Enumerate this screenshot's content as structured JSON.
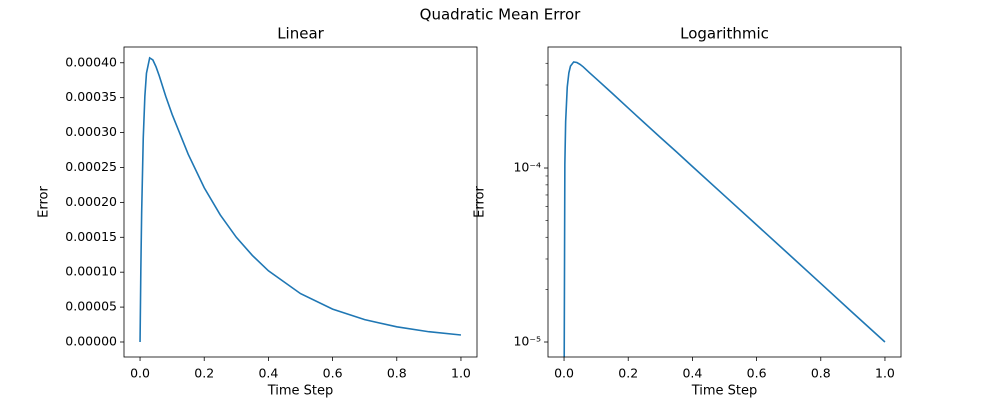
{
  "title": "Quadratic Mean Error",
  "chart_data": [
    {
      "type": "line",
      "title": "Linear",
      "x_label": "Time Step",
      "y_label": "Error",
      "color": "#1f77b4",
      "yscale": "linear",
      "x": [
        0,
        0.0025,
        0.005,
        0.01,
        0.015,
        0.02,
        0.03,
        0.04,
        0.05,
        0.06,
        0.08,
        0.1,
        0.15,
        0.2,
        0.25,
        0.3,
        0.35,
        0.4,
        0.5,
        0.6,
        0.7,
        0.8,
        0.9,
        1.0
      ],
      "values": [
        0,
        0.000105,
        0.000185,
        0.000292,
        0.000352,
        0.000385,
        0.000407,
        0.000404,
        0.000394,
        0.000381,
        0.000352,
        0.000326,
        0.000269,
        0.000221,
        0.000182,
        0.00015,
        0.000124,
        0.000102,
        6.93e-05,
        4.71e-05,
        3.2e-05,
        2.17e-05,
        1.47e-05,
        1e-05
      ],
      "xlim": [
        -0.05,
        1.05
      ],
      "xticks": [
        {
          "value": 0,
          "label": "0.0"
        },
        {
          "value": 0.2,
          "label": "0.2"
        },
        {
          "value": 0.4,
          "label": "0.4"
        },
        {
          "value": 0.6,
          "label": "0.6"
        },
        {
          "value": 0.8,
          "label": "0.8"
        },
        {
          "value": 1,
          "label": "1.0"
        }
      ],
      "ylim": [
        -2.15e-05,
        0.0004226
      ],
      "yticks": [
        {
          "value": 0,
          "label": "0.00000"
        },
        {
          "value": 5e-05,
          "label": "0.00005"
        },
        {
          "value": 0.0001,
          "label": "0.00010"
        },
        {
          "value": 0.00015,
          "label": "0.00015"
        },
        {
          "value": 0.0002,
          "label": "0.00020"
        },
        {
          "value": 0.00025,
          "label": "0.00025"
        },
        {
          "value": 0.0003,
          "label": "0.00030"
        },
        {
          "value": 0.00035,
          "label": "0.00035"
        },
        {
          "value": 0.0004,
          "label": "0.00040"
        }
      ]
    },
    {
      "type": "line",
      "title": "Logarithmic",
      "x_label": "Time Step",
      "y_label": "Error",
      "color": "#1f77b4",
      "yscale": "log",
      "x": [
        0.0001,
        0.0025,
        0.005,
        0.01,
        0.015,
        0.02,
        0.03,
        0.04,
        0.05,
        0.06,
        0.08,
        0.1,
        0.15,
        0.2,
        0.25,
        0.3,
        0.35,
        0.4,
        0.5,
        0.6,
        0.7,
        0.8,
        0.9,
        1.0
      ],
      "values": [
        4.8e-06,
        0.000105,
        0.000185,
        0.000292,
        0.000352,
        0.000385,
        0.000407,
        0.000404,
        0.000394,
        0.000381,
        0.000352,
        0.000326,
        0.000269,
        0.000221,
        0.000182,
        0.00015,
        0.000124,
        0.000102,
        6.93e-05,
        4.71e-05,
        3.2e-05,
        2.17e-05,
        1.47e-05,
        1e-05
      ],
      "xlim": [
        -0.05,
        1.05
      ],
      "xticks": [
        {
          "value": 0,
          "label": "0.0"
        },
        {
          "value": 0.2,
          "label": "0.2"
        },
        {
          "value": 0.4,
          "label": "0.4"
        },
        {
          "value": 0.6,
          "label": "0.6"
        },
        {
          "value": 0.8,
          "label": "0.8"
        },
        {
          "value": 1,
          "label": "1.0"
        }
      ],
      "ylim": [
        8.2e-06,
        0.000496
      ],
      "yticks": [
        {
          "value": 1e-05,
          "label": "10⁻⁵"
        },
        {
          "value": 0.0001,
          "label": "10⁻⁴"
        }
      ],
      "yminorticks": [
        2e-05,
        3e-05,
        4e-05,
        5e-05,
        6e-05,
        7e-05,
        8e-05,
        9e-05,
        0.0002,
        0.0003,
        0.0004
      ]
    }
  ]
}
